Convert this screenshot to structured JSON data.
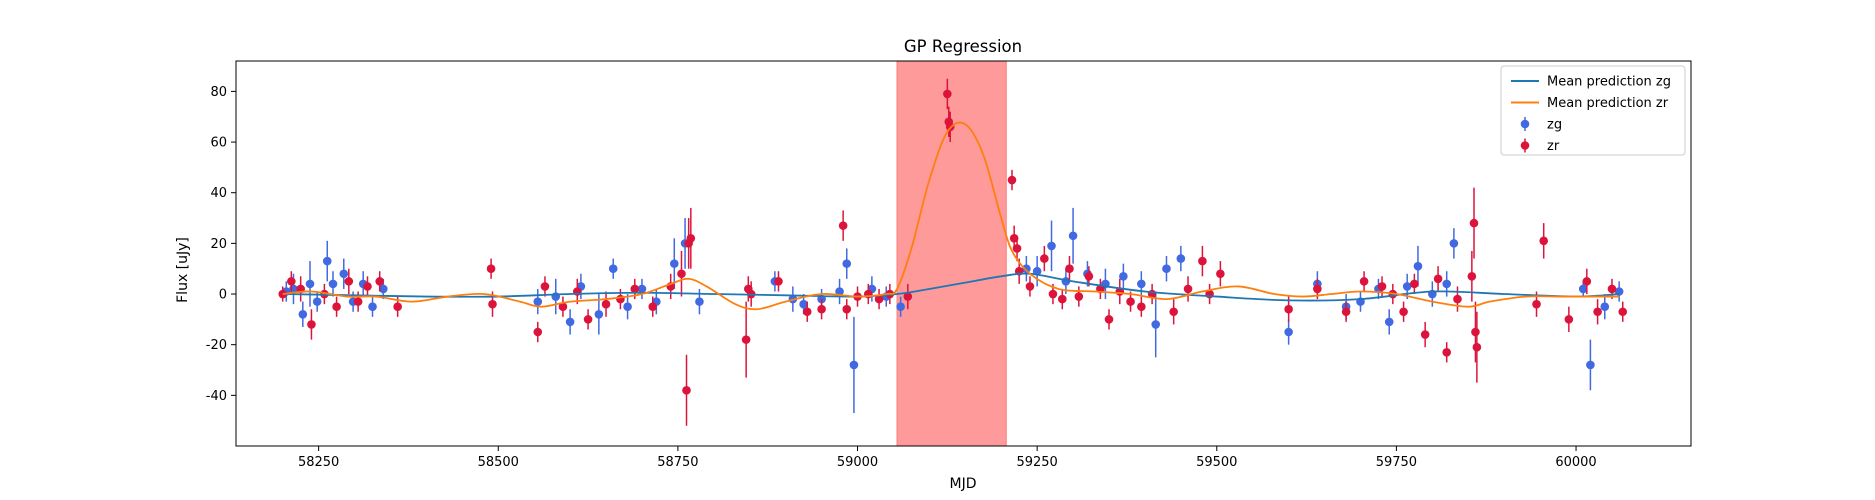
{
  "chart_data": {
    "type": "scatter",
    "title": "GP Regression",
    "xlabel": "MJD",
    "ylabel": "Flux [uJy]",
    "xlim": [
      58135,
      60160
    ],
    "ylim": [
      -60,
      92
    ],
    "xticks": [
      58250,
      58500,
      58750,
      59000,
      59250,
      59500,
      59750,
      60000
    ],
    "yticks": [
      -40,
      -20,
      0,
      20,
      40,
      60,
      80
    ],
    "grid": false,
    "legend_position": "top-right",
    "shaded_region": {
      "x_start": 59055,
      "x_end": 59207,
      "color": "#ff9a9a"
    },
    "series": [
      {
        "name": "Mean prediction zg",
        "kind": "line",
        "color": "#1f77b4",
        "x": [
          58200,
          58300,
          58400,
          58500,
          58600,
          58700,
          58800,
          58900,
          59000,
          59055,
          59100,
          59150,
          59200,
          59240,
          59300,
          59400,
          59500,
          59600,
          59700,
          59800,
          59900,
          60000,
          60060
        ],
        "y": [
          0,
          -0.5,
          -1,
          -1,
          0,
          0.5,
          0,
          -0.5,
          -1,
          0,
          2,
          4.5,
          7,
          8,
          5,
          1,
          -1,
          -2.5,
          -2,
          1,
          0,
          -1,
          0
        ]
      },
      {
        "name": "Mean prediction zr",
        "kind": "line",
        "color": "#ff7f0e",
        "x": [
          58200,
          58240,
          58290,
          58330,
          58380,
          58430,
          58480,
          58530,
          58560,
          58600,
          58650,
          58700,
          58740,
          58765,
          58790,
          58830,
          58860,
          58900,
          58950,
          59000,
          59040,
          59055,
          59075,
          59100,
          59125,
          59150,
          59175,
          59200,
          59215,
          59240,
          59280,
          59330,
          59380,
          59430,
          59480,
          59530,
          59580,
          59620,
          59660,
          59700,
          59750,
          59800,
          59850,
          59880,
          59930,
          59980,
          60030,
          60060
        ],
        "y": [
          0,
          1,
          -1,
          -1,
          -3,
          -1,
          0,
          -3,
          -5,
          -3,
          -2,
          0,
          4,
          6,
          3,
          -4,
          -6,
          -3,
          0,
          -1,
          0,
          2,
          18,
          45,
          64,
          67,
          55,
          30,
          17,
          8,
          2,
          1,
          0,
          -2,
          1,
          3,
          0,
          -1,
          0,
          1,
          0,
          -3,
          -5,
          -3,
          -1,
          -1,
          -1,
          -1
        ]
      },
      {
        "name": "zg",
        "kind": "errorbar",
        "color": "#4169e1",
        "x": [
          58205,
          58215,
          58228,
          58238,
          58248,
          58262,
          58270,
          58285,
          58298,
          58312,
          58325,
          58340,
          58555,
          58580,
          58600,
          58615,
          58640,
          58660,
          58680,
          58700,
          58720,
          58745,
          58760,
          58780,
          58885,
          58910,
          58925,
          58950,
          58975,
          58985,
          58995,
          59020,
          59040,
          59060,
          59235,
          59250,
          59270,
          59290,
          59300,
          59320,
          59345,
          59370,
          59395,
          59415,
          59430,
          59450,
          59600,
          59640,
          59680,
          59700,
          59725,
          59740,
          59765,
          59780,
          59800,
          59820,
          59830,
          60010,
          60020,
          60040,
          60060
        ],
        "y": [
          1,
          2,
          -8,
          4,
          -3,
          13,
          4,
          8,
          -3,
          4,
          -5,
          2,
          -3,
          -1,
          -11,
          3,
          -8,
          10,
          -5,
          2,
          -3,
          12,
          20,
          -3,
          5,
          -2,
          -4,
          -2,
          1,
          12,
          -28,
          2,
          -1,
          -5,
          10,
          9,
          19,
          5,
          23,
          8,
          4,
          7,
          4,
          -12,
          10,
          14,
          -15,
          4,
          -5,
          -3,
          2,
          -11,
          3,
          11,
          0,
          4,
          20,
          2,
          -28,
          -5,
          1
        ],
        "err": [
          4,
          6,
          5,
          9,
          4,
          8,
          5,
          6,
          4,
          5,
          4,
          4,
          5,
          7,
          5,
          5,
          8,
          4,
          5,
          4,
          5,
          10,
          10,
          5,
          4,
          5,
          4,
          4,
          5,
          6,
          19,
          5,
          4,
          4,
          5,
          6,
          10,
          5,
          11,
          5,
          6,
          5,
          5,
          13,
          5,
          5,
          5,
          5,
          5,
          4,
          4,
          5,
          5,
          8,
          5,
          5,
          6,
          3,
          10,
          5,
          4
        ]
      },
      {
        "name": "zr",
        "kind": "errorbar",
        "color": "#dc143c",
        "x": [
          58200,
          58212,
          58225,
          58240,
          58258,
          58275,
          58292,
          58305,
          58318,
          58335,
          58360,
          58490,
          58492,
          58555,
          58565,
          58590,
          58610,
          58625,
          58650,
          58670,
          58690,
          58715,
          58740,
          58755,
          58762,
          58765,
          58768,
          58845,
          58848,
          58852,
          58890,
          58930,
          58950,
          58980,
          58985,
          59000,
          59015,
          59030,
          59045,
          59070,
          59125,
          59127,
          59129,
          59215,
          59218,
          59222,
          59225,
          59240,
          59260,
          59272,
          59285,
          59295,
          59308,
          59322,
          59338,
          59350,
          59365,
          59380,
          59395,
          59410,
          59440,
          59460,
          59480,
          59490,
          59505,
          59600,
          59640,
          59680,
          59705,
          59730,
          59745,
          59760,
          59775,
          59790,
          59808,
          59820,
          59835,
          59855,
          59858,
          59860,
          59862,
          59945,
          59955,
          59990,
          60015,
          60030,
          60050,
          60065
        ],
        "y": [
          0,
          5,
          2,
          -12,
          0,
          -5,
          5,
          -3,
          3,
          5,
          -5,
          10,
          -4,
          -15,
          3,
          -5,
          1,
          -10,
          -4,
          -2,
          2,
          -5,
          3,
          8,
          -38,
          20,
          22,
          -18,
          2,
          0,
          5,
          -7,
          -6,
          27,
          -6,
          -1,
          0,
          -2,
          0,
          -1,
          79,
          68,
          66,
          45,
          22,
          18,
          9,
          3,
          14,
          0,
          -2,
          10,
          -1,
          7,
          2,
          -10,
          1,
          -3,
          -5,
          0,
          -7,
          2,
          13,
          0,
          8,
          -6,
          2,
          -7,
          5,
          3,
          0,
          -7,
          4,
          -16,
          6,
          -23,
          -2,
          7,
          28,
          -15,
          -21,
          -4,
          21,
          -10,
          5,
          -7,
          2,
          -7
        ],
        "err": [
          3,
          4,
          5,
          6,
          4,
          4,
          5,
          4,
          4,
          4,
          4,
          4,
          5,
          4,
          4,
          4,
          5,
          4,
          5,
          4,
          4,
          4,
          5,
          9,
          14,
          10,
          12,
          15,
          5,
          5,
          4,
          4,
          4,
          6,
          4,
          4,
          4,
          4,
          4,
          5,
          6,
          6,
          6,
          4,
          5,
          5,
          5,
          4,
          5,
          4,
          4,
          5,
          4,
          4,
          4,
          4,
          5,
          4,
          4,
          4,
          5,
          5,
          6,
          4,
          5,
          5,
          4,
          4,
          4,
          4,
          4,
          4,
          4,
          5,
          5,
          4,
          5,
          10,
          14,
          12,
          14,
          5,
          7,
          5,
          5,
          5,
          4,
          4
        ]
      }
    ]
  }
}
